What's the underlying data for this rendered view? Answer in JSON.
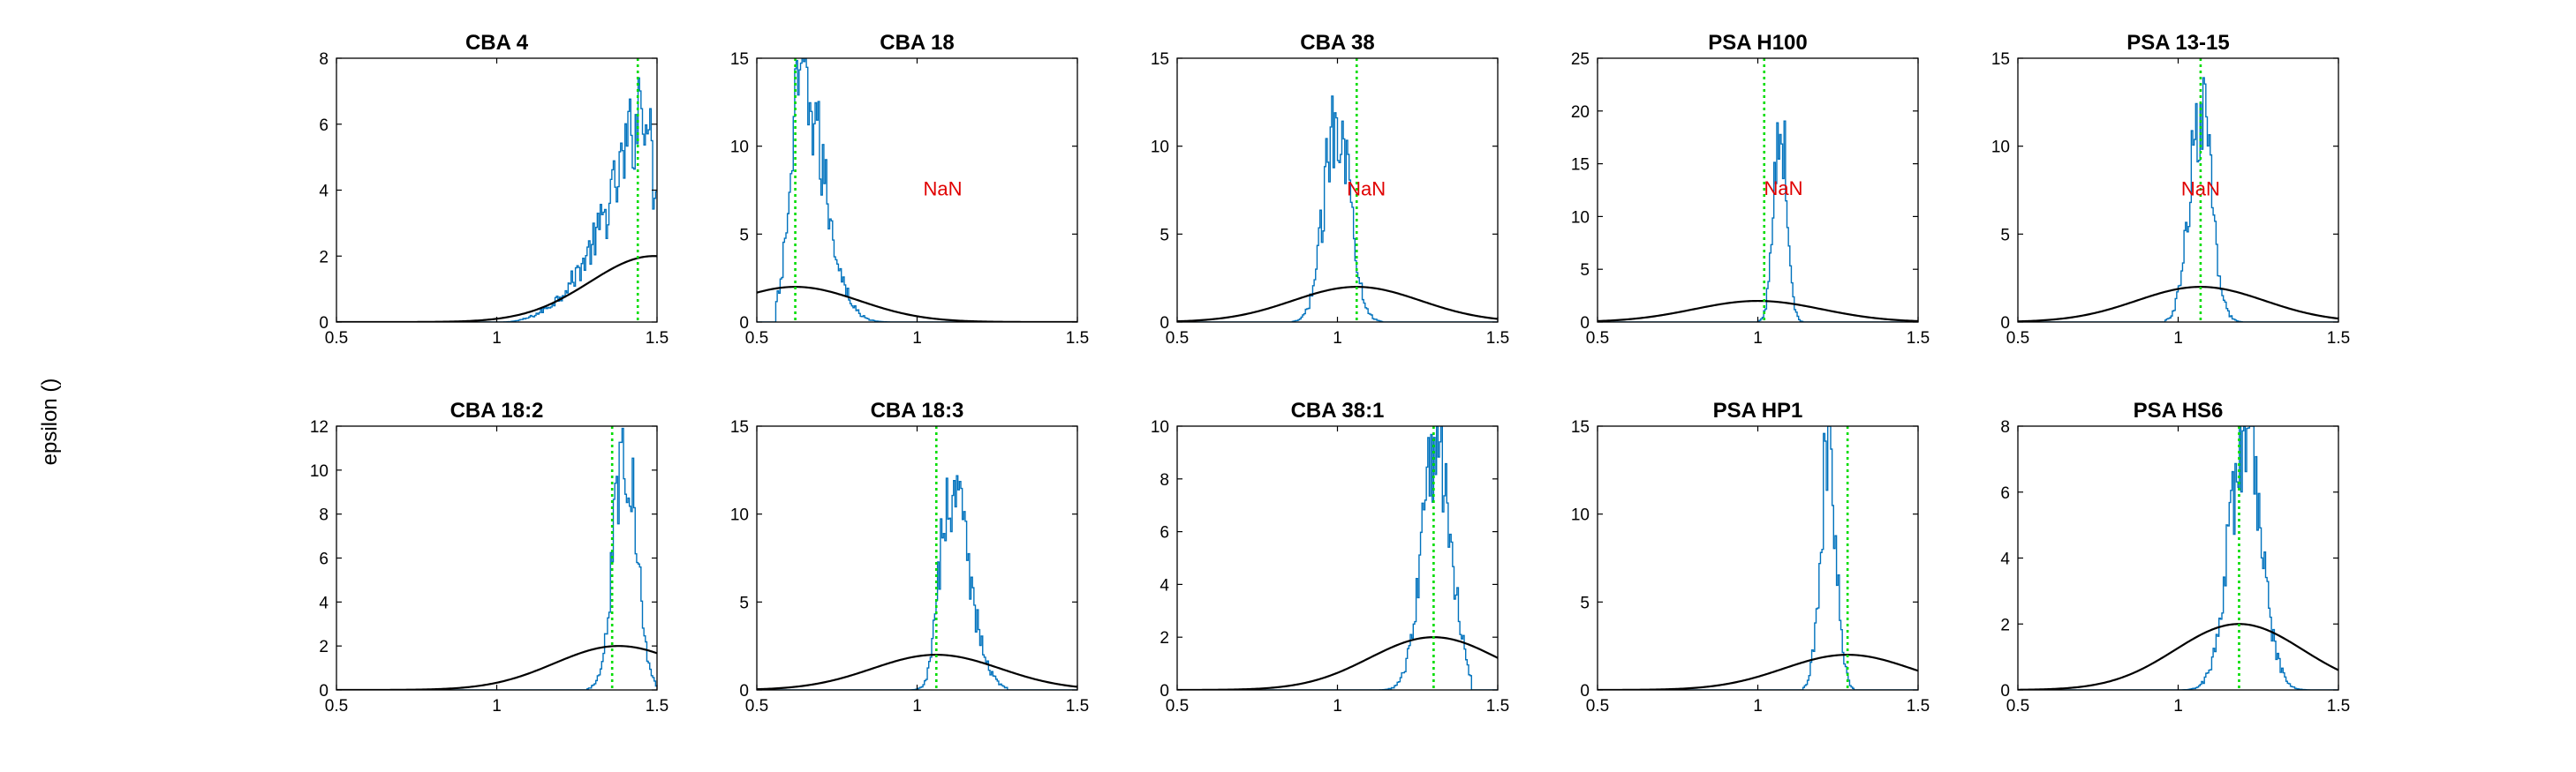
{
  "figure": {
    "ylabel": "epsilon ()"
  },
  "colors": {
    "histogram": "#0072BD",
    "prior_curve": "#000000",
    "reference_line": "#00DD00",
    "nan_text": "#E00000",
    "axes": "#000000"
  },
  "chart_data": [
    {
      "type": "histogram",
      "title": "CBA 4",
      "xlim": [
        0.5,
        1.5
      ],
      "ylim": [
        0,
        8
      ],
      "xticks": [
        0.5,
        1,
        1.5
      ],
      "xtick_labels": [
        "0.5",
        "1",
        "1.5"
      ],
      "yticks": [
        0,
        2,
        4,
        6,
        8
      ],
      "ytick_labels": [
        "0",
        "2",
        "4",
        "6",
        "8"
      ],
      "reference_x": 1.44,
      "prior": {
        "mu": 1.49,
        "sigma": 0.2,
        "peak": 2.0
      },
      "posterior": {
        "shape": "left-skewed",
        "start": 1.0,
        "end": 1.5,
        "peak_x": 1.46,
        "peak_y": 7.2
      },
      "annotation": ""
    },
    {
      "type": "histogram",
      "title": "CBA 18",
      "xlim": [
        0.5,
        1.5
      ],
      "ylim": [
        0,
        15
      ],
      "xticks": [
        0.5,
        1,
        1.5
      ],
      "xtick_labels": [
        "0.5",
        "1",
        "1.5"
      ],
      "yticks": [
        0,
        5,
        10,
        15
      ],
      "ytick_labels": [
        "0",
        "5",
        "10",
        "15"
      ],
      "reference_x": 0.62,
      "prior": {
        "mu": 0.62,
        "sigma": 0.2,
        "peak": 2.0
      },
      "posterior": {
        "shape": "right-skewed",
        "mode": 0.64,
        "width": 0.035,
        "peak_y": 13.5,
        "min": 0.56,
        "max": 0.92
      },
      "annotation": "NaN",
      "annotation_pos": {
        "x": 1.08,
        "y": 7.6
      }
    },
    {
      "type": "histogram",
      "title": "CBA 38",
      "xlim": [
        0.5,
        1.5
      ],
      "ylim": [
        0,
        15
      ],
      "xticks": [
        0.5,
        1,
        1.5
      ],
      "xtick_labels": [
        "0.5",
        "1",
        "1.5"
      ],
      "yticks": [
        0,
        5,
        10,
        15
      ],
      "ytick_labels": [
        "0",
        "5",
        "10",
        "15"
      ],
      "reference_x": 1.06,
      "prior": {
        "mu": 1.06,
        "sigma": 0.2,
        "peak": 2.0
      },
      "posterior": {
        "shape": "normal",
        "mode": 1.0,
        "width": 0.04,
        "peak_y": 12.0,
        "min": 0.86,
        "max": 1.14
      },
      "annotation": "NaN",
      "annotation_pos": {
        "x": 1.09,
        "y": 7.6
      }
    },
    {
      "type": "histogram",
      "title": "PSA H100",
      "xlim": [
        0.5,
        1.5
      ],
      "ylim": [
        0,
        25
      ],
      "xticks": [
        0.5,
        1,
        1.5
      ],
      "xtick_labels": [
        "0.5",
        "1",
        "1.5"
      ],
      "yticks": [
        0,
        5,
        10,
        15,
        20,
        25
      ],
      "ytick_labels": [
        "0",
        "5",
        "10",
        "15",
        "20",
        "25"
      ],
      "reference_x": 1.02,
      "prior": {
        "mu": 1.0,
        "sigma": 0.2,
        "peak": 2.0
      },
      "posterior": {
        "shape": "normal",
        "mode": 1.07,
        "width": 0.02,
        "peak_y": 20.0,
        "min": 1.0,
        "max": 1.14
      },
      "annotation": "NaN",
      "annotation_pos": {
        "x": 1.08,
        "y": 12.7
      }
    },
    {
      "type": "histogram",
      "title": "PSA 13-15",
      "xlim": [
        0.5,
        1.5
      ],
      "ylim": [
        0,
        15
      ],
      "xticks": [
        0.5,
        1,
        1.5
      ],
      "xtick_labels": [
        "0.5",
        "1",
        "1.5"
      ],
      "yticks": [
        0,
        5,
        10,
        15
      ],
      "ytick_labels": [
        "0",
        "5",
        "10",
        "15"
      ],
      "reference_x": 1.07,
      "prior": {
        "mu": 1.07,
        "sigma": 0.2,
        "peak": 2.0
      },
      "posterior": {
        "shape": "normal",
        "mode": 1.07,
        "width": 0.035,
        "peak_y": 12.0,
        "min": 0.96,
        "max": 1.2
      },
      "annotation": "NaN",
      "annotation_pos": {
        "x": 1.07,
        "y": 7.6
      }
    },
    {
      "type": "histogram",
      "title": "CBA 18:2",
      "xlim": [
        0.5,
        1.5
      ],
      "ylim": [
        0,
        12
      ],
      "xticks": [
        0.5,
        1,
        1.5
      ],
      "xtick_labels": [
        "0.5",
        "1",
        "1.5"
      ],
      "yticks": [
        0,
        2,
        4,
        6,
        8,
        10,
        12
      ],
      "ytick_labels": [
        "0",
        "2",
        "4",
        "6",
        "8",
        "10",
        "12"
      ],
      "reference_x": 1.36,
      "prior": {
        "mu": 1.38,
        "sigma": 0.2,
        "peak": 2.0
      },
      "posterior": {
        "shape": "normal",
        "mode": 1.4,
        "width": 0.035,
        "peak_y": 11.5,
        "min": 1.28,
        "max": 1.5
      },
      "annotation": ""
    },
    {
      "type": "histogram",
      "title": "CBA 18:3",
      "xlim": [
        0.5,
        1.5
      ],
      "ylim": [
        0,
        15
      ],
      "xticks": [
        0.5,
        1,
        1.5
      ],
      "xtick_labels": [
        "0.5",
        "1",
        "1.5"
      ],
      "yticks": [
        0,
        5,
        10,
        15
      ],
      "ytick_labels": [
        "0",
        "5",
        "10",
        "15"
      ],
      "reference_x": 1.06,
      "prior": {
        "mu": 1.06,
        "sigma": 0.2,
        "peak": 2.0
      },
      "posterior": {
        "shape": "right-skewed",
        "mode": 1.1,
        "width": 0.03,
        "peak_y": 11.5,
        "min": 0.98,
        "max": 1.28
      },
      "annotation": ""
    },
    {
      "type": "histogram",
      "title": "CBA 38:1",
      "xlim": [
        0.5,
        1.5
      ],
      "ylim": [
        0,
        10
      ],
      "xticks": [
        0.5,
        1,
        1.5
      ],
      "xtick_labels": [
        "0.5",
        "1",
        "1.5"
      ],
      "yticks": [
        0,
        2,
        4,
        6,
        8,
        10
      ],
      "ytick_labels": [
        "0",
        "2",
        "4",
        "6",
        "8",
        "10"
      ],
      "reference_x": 1.3,
      "prior": {
        "mu": 1.3,
        "sigma": 0.2,
        "peak": 2.0
      },
      "posterior": {
        "shape": "normal",
        "mode": 1.31,
        "width": 0.045,
        "peak_y": 9.5,
        "min": 1.12,
        "max": 1.42
      },
      "annotation": ""
    },
    {
      "type": "histogram",
      "title": "PSA HP1",
      "xlim": [
        0.5,
        1.5
      ],
      "ylim": [
        0,
        15
      ],
      "xticks": [
        0.5,
        1,
        1.5
      ],
      "xtick_labels": [
        "0.5",
        "1",
        "1.5"
      ],
      "yticks": [
        0,
        5,
        10,
        15
      ],
      "ytick_labels": [
        "0",
        "5",
        "10",
        "15"
      ],
      "reference_x": 1.28,
      "prior": {
        "mu": 1.28,
        "sigma": 0.2,
        "peak": 2.0
      },
      "posterior": {
        "shape": "normal",
        "mode": 1.22,
        "width": 0.025,
        "peak_y": 13.5,
        "min": 1.14,
        "max": 1.3
      },
      "annotation": ""
    },
    {
      "type": "histogram",
      "title": "PSA HS6",
      "xlim": [
        0.5,
        1.5
      ],
      "ylim": [
        0,
        8
      ],
      "xticks": [
        0.5,
        1,
        1.5
      ],
      "xtick_labels": [
        "0.5",
        "1",
        "1.5"
      ],
      "yticks": [
        0,
        2,
        4,
        6,
        8
      ],
      "ytick_labels": [
        "0",
        "2",
        "4",
        "6",
        "8"
      ],
      "reference_x": 1.19,
      "prior": {
        "mu": 1.19,
        "sigma": 0.2,
        "peak": 2.0
      },
      "posterior": {
        "shape": "normal",
        "mode": 1.21,
        "width": 0.05,
        "peak_y": 7.8,
        "min": 1.0,
        "max": 1.42
      },
      "annotation": ""
    }
  ]
}
